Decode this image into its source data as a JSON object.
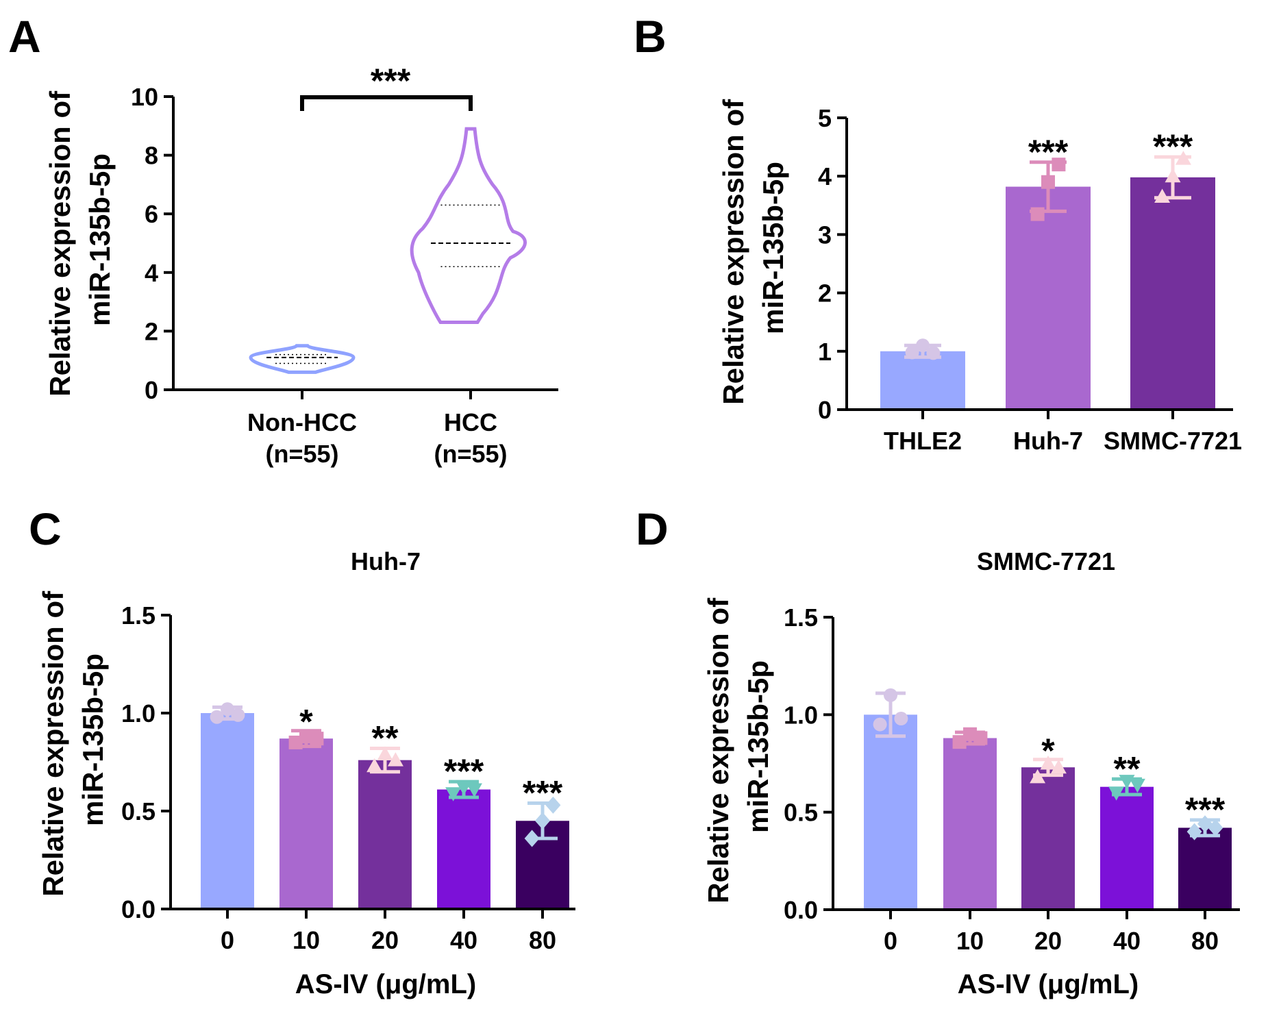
{
  "colors": {
    "non_hcc": "#8fa2ff",
    "hcc": "#b47ce8",
    "thle2": "#98a8ff",
    "huh7": "#a968cf",
    "smmc": "#74309c",
    "bar0": "#98a8ff",
    "bar10": "#a968cf",
    "bar20": "#74309c",
    "bar40": "#7c11d8",
    "bar80": "#3a0060",
    "pt0": "#d5c5e6",
    "pt10": "#dc8cba",
    "pt20": "#fad6dc",
    "pt40": "#6dc8bd",
    "pt80": "#b7d3ec"
  },
  "chart_data": [
    {
      "panel": "A",
      "type": "violin",
      "title": "",
      "ylabel": [
        "Relative expression of",
        "miR-135b-5p"
      ],
      "ylim": [
        0,
        10
      ],
      "yticks": [
        "0",
        "2",
        "4",
        "6",
        "8",
        "10"
      ],
      "categories": [
        {
          "name": "Non-HCC",
          "sub": "(n=55)",
          "min": 0.6,
          "max": 1.5,
          "median": 1.1,
          "q1": 0.9,
          "q3": 1.2
        },
        {
          "name": "HCC",
          "sub": "(n=55)",
          "min": 2.3,
          "max": 8.9,
          "median": 5.0,
          "q1": 4.2,
          "q3": 6.3
        }
      ],
      "significance": "***"
    },
    {
      "panel": "B",
      "type": "bar",
      "title": "",
      "ylabel": [
        "Relative expression of",
        "miR-135b-5p"
      ],
      "ylim": [
        0,
        5
      ],
      "yticks": [
        "0",
        "1",
        "2",
        "3",
        "4",
        "5"
      ],
      "categories": [
        "THLE2",
        "Huh-7",
        "SMMC-7721"
      ],
      "values": [
        1.0,
        3.82,
        3.98
      ],
      "errors": [
        0.1,
        0.42,
        0.35
      ],
      "points": [
        [
          0.98,
          1.1,
          0.97
        ],
        [
          3.35,
          3.9,
          4.2
        ],
        [
          3.65,
          4.0,
          4.3
        ]
      ],
      "significance": [
        "",
        "***",
        "***"
      ]
    },
    {
      "panel": "C",
      "type": "bar",
      "title": "Huh-7",
      "ylabel": [
        "Relative expression of",
        "miR-135b-5p"
      ],
      "xlabel": "AS-IV (μg/mL)",
      "ylim": [
        0,
        1.5
      ],
      "yticks": [
        "0.0",
        "0.5",
        "1.0",
        "1.5"
      ],
      "categories": [
        "0",
        "10",
        "20",
        "40",
        "80"
      ],
      "values": [
        1.0,
        0.87,
        0.76,
        0.61,
        0.45
      ],
      "errors": [
        0.03,
        0.04,
        0.06,
        0.04,
        0.09
      ],
      "points": [
        [
          0.98,
          1.02,
          0.99
        ],
        [
          0.85,
          0.88,
          0.87
        ],
        [
          0.73,
          0.79,
          0.76
        ],
        [
          0.59,
          0.62,
          0.61
        ],
        [
          0.36,
          0.45,
          0.53
        ]
      ],
      "significance": [
        "",
        "*",
        "**",
        "***",
        "***"
      ]
    },
    {
      "panel": "D",
      "type": "bar",
      "title": "SMMC-7721",
      "ylabel": [
        "Relative expression of",
        "miR-135b-5p"
      ],
      "xlabel": "AS-IV (μg/mL)",
      "ylim": [
        0,
        1.5
      ],
      "yticks": [
        "0.0",
        "0.5",
        "1.0",
        "1.5"
      ],
      "categories": [
        "0",
        "10",
        "20",
        "40",
        "80"
      ],
      "values": [
        1.0,
        0.88,
        0.73,
        0.63,
        0.42
      ],
      "errors": [
        0.11,
        0.03,
        0.04,
        0.04,
        0.04
      ],
      "points": [
        [
          0.95,
          1.1,
          0.98
        ],
        [
          0.86,
          0.9,
          0.88
        ],
        [
          0.68,
          0.75,
          0.73
        ],
        [
          0.6,
          0.66,
          0.64
        ],
        [
          0.4,
          0.44,
          0.42
        ]
      ],
      "significance": [
        "",
        "",
        "*",
        "**",
        "***"
      ]
    }
  ]
}
